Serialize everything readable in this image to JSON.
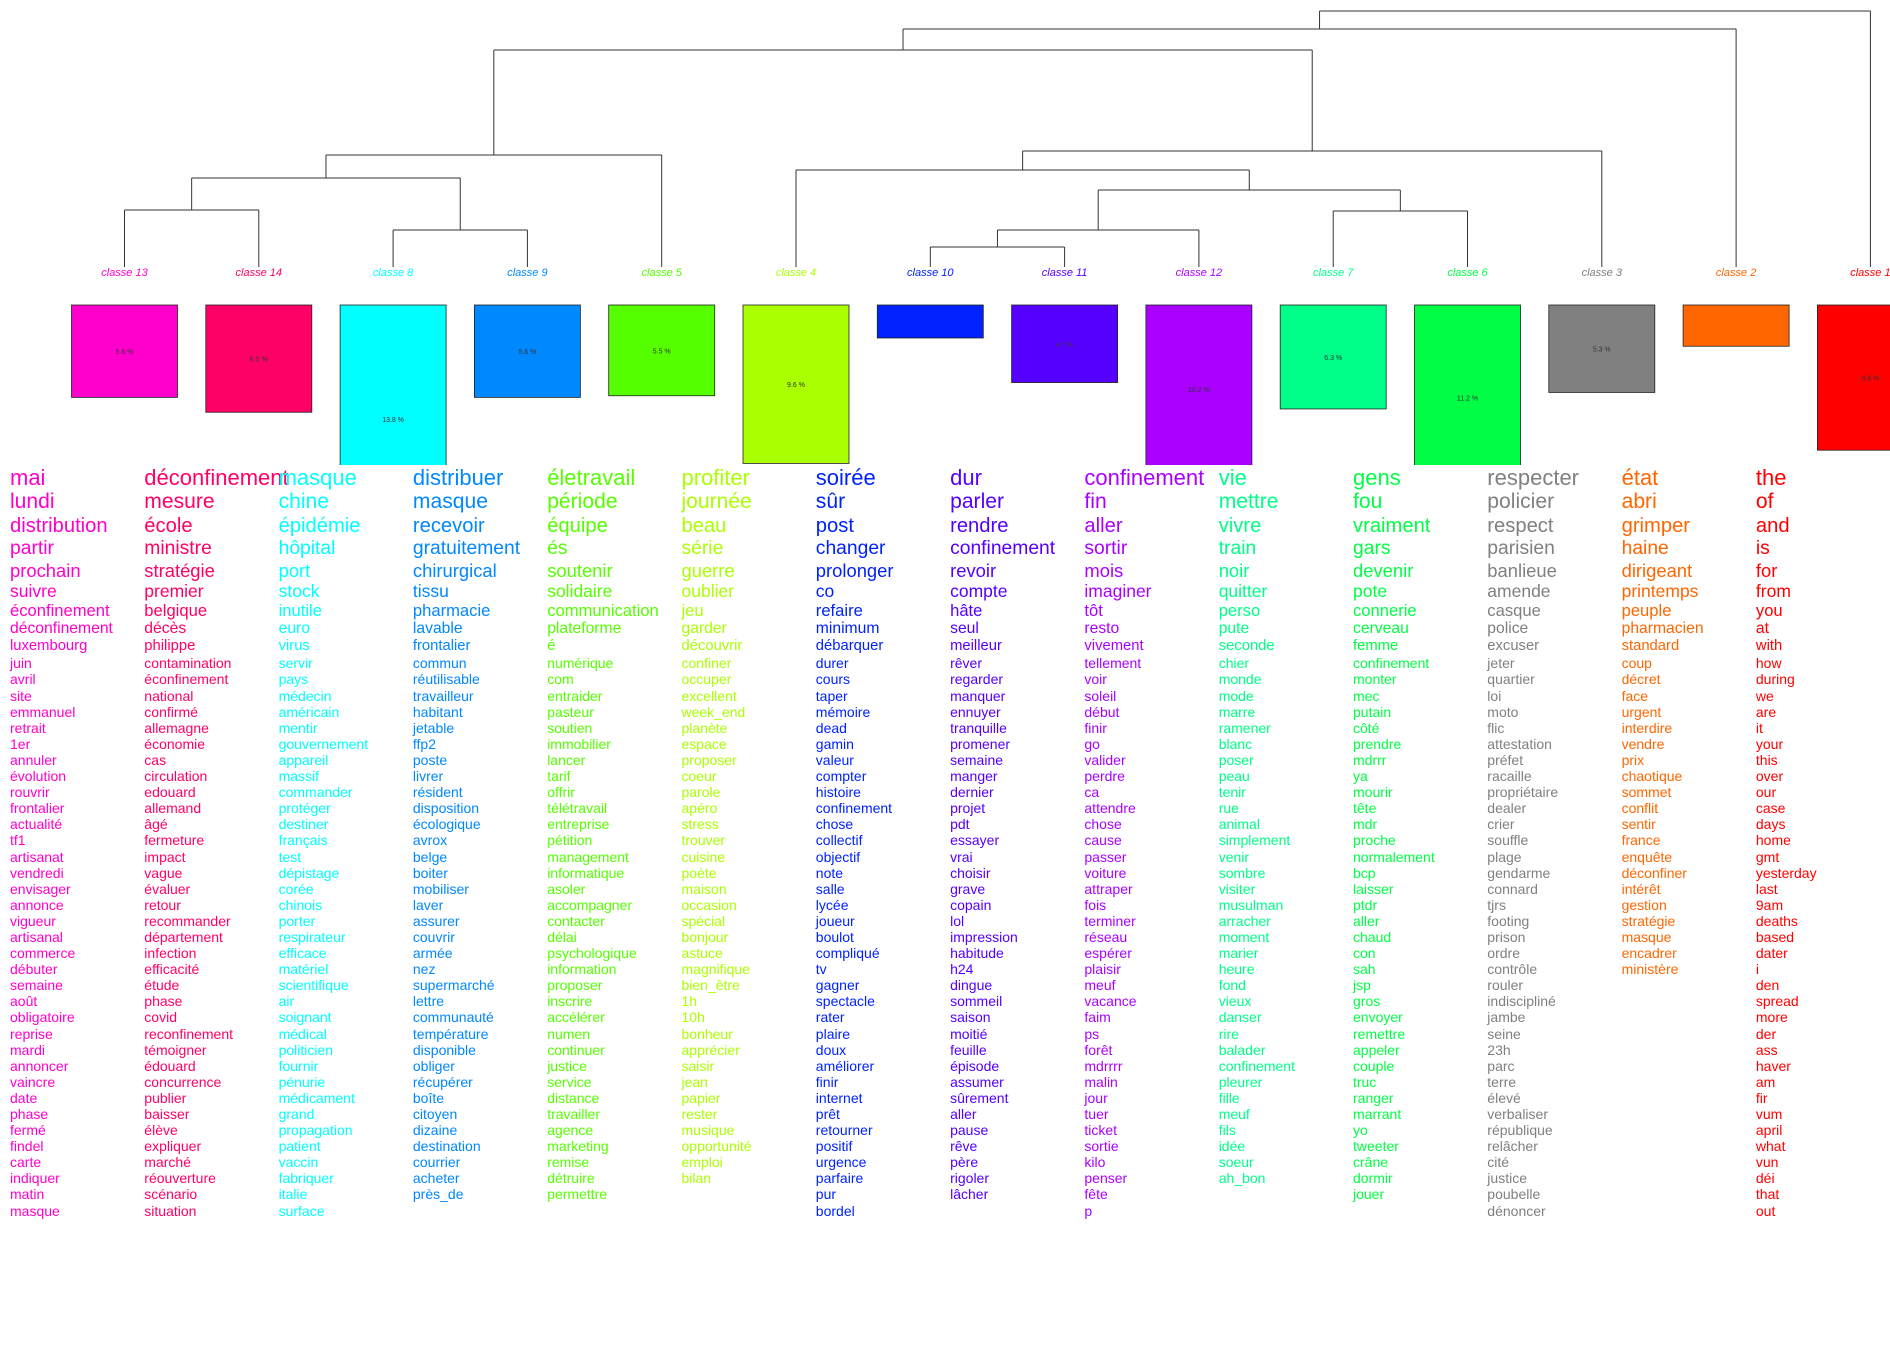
{
  "chart_data": {
    "type": "dendrogram",
    "title": "",
    "leaf_order": [
      13,
      14,
      8,
      9,
      5,
      4,
      10,
      11,
      12,
      7,
      6,
      3,
      2,
      1
    ],
    "classes": [
      {
        "id": 13,
        "label": "classe 13",
        "color": "#ff00cc",
        "percent": 5.6,
        "pct_label": "5.6 %",
        "words": [
          "mai",
          "lundi",
          "distribution",
          "partir",
          "prochain",
          "suivre",
          "éconfinement",
          "déconfinement",
          "luxembourg",
          "juin",
          "avril",
          "site",
          "emmanuel",
          "retrait",
          "1er",
          "annuler",
          "évolution",
          "rouvrir",
          "frontalier",
          "actualité",
          "tf1",
          "artisanat",
          "vendredi",
          "envisager",
          "annonce",
          "vigueur",
          "artisanal",
          "commerce",
          "débuter",
          "semaine",
          "août",
          "obligatoire",
          "reprise",
          "mardi",
          "annoncer",
          "vaincre",
          "date",
          "phase",
          "fermé",
          "findel",
          "carte",
          "indiquer",
          "matin",
          "masque"
        ]
      },
      {
        "id": 14,
        "label": "classe 14",
        "color": "#ff0066",
        "percent": 6.5,
        "pct_label": "6.5 %",
        "words": [
          "déconfinement",
          "mesure",
          "école",
          "ministre",
          "stratégie",
          "premier",
          "belgique",
          "décès",
          "philippe",
          "contamination",
          "éconfinement",
          "national",
          "confirmé",
          "allemagne",
          "économie",
          "cas",
          "circulation",
          "edouard",
          "allemand",
          "âgé",
          "fermeture",
          "impact",
          "vague",
          "évaluer",
          "retour",
          "recommander",
          "département",
          "infection",
          "efficacité",
          "étude",
          "phase",
          "covid",
          "reconfinement",
          "témoigner",
          "édouard",
          "concurrence",
          "publier",
          "baisser",
          "élève",
          "expliquer",
          "marché",
          "réouverture",
          "scénario",
          "situation"
        ]
      },
      {
        "id": 8,
        "label": "classe 8",
        "color": "#00ffff",
        "percent": 13.8,
        "pct_label": "13.8 %",
        "words": [
          "masque",
          "chine",
          "épidémie",
          "hôpital",
          "port",
          "stock",
          "inutile",
          "euro",
          "virus",
          "servir",
          "pays",
          "médecin",
          "américain",
          "mentir",
          "gouvernement",
          "appareil",
          "massif",
          "commander",
          "protéger",
          "destiner",
          "français",
          "test",
          "dépistage",
          "corée",
          "chinois",
          "porter",
          "respirateur",
          "efficace",
          "matériel",
          "scientifique",
          "air",
          "soignant",
          "médical",
          "politicien",
          "fournir",
          "pénurie",
          "médicament",
          "grand",
          "propagation",
          "patient",
          "vaccin",
          "fabriquer",
          "italie",
          "surface"
        ]
      },
      {
        "id": 9,
        "label": "classe 9",
        "color": "#0088ff",
        "percent": 5.6,
        "pct_label": "5.6 %",
        "words": [
          "distribuer",
          "masque",
          "recevoir",
          "gratuitement",
          "chirurgical",
          "tissu",
          "pharmacie",
          "lavable",
          "frontalier",
          "commun",
          "réutilisable",
          "travailleur",
          "habitant",
          "jetable",
          "ffp2",
          "poste",
          "livrer",
          "résident",
          "disposition",
          "écologique",
          "avrox",
          "belge",
          "boiter",
          "mobiliser",
          "laver",
          "assurer",
          "couvrir",
          "armée",
          "nez",
          "supermarché",
          "lettre",
          "communauté",
          "température",
          "disponible",
          "obliger",
          "récupérer",
          "boîte",
          "citoyen",
          "dizaine",
          "destination",
          "courrier",
          "acheter",
          "près_de"
        ]
      },
      {
        "id": 5,
        "label": "classe 5",
        "color": "#55ff00",
        "percent": 5.5,
        "pct_label": "5.5 %",
        "words": [
          "életravail",
          "période",
          "équipe",
          "és",
          "soutenir",
          "solidaire",
          "communication",
          "plateforme",
          "é",
          "numérique",
          "com",
          "entraider",
          "pasteur",
          "soutien",
          "immobilier",
          "lancer",
          "tarif",
          "offrir",
          "télétravail",
          "entreprise",
          "pétition",
          "management",
          "informatique",
          "asoler",
          "accompagner",
          "contacter",
          "délai",
          "psychologique",
          "information",
          "proposer",
          "inscrire",
          "accélérer",
          "numen",
          "continuer",
          "justice",
          "service",
          "distance",
          "travailler",
          "agence",
          "marketing",
          "remise",
          "détruire",
          "permettre"
        ]
      },
      {
        "id": 4,
        "label": "classe 4",
        "color": "#aaff00",
        "percent": 9.6,
        "pct_label": "9.6 %",
        "words": [
          "profiter",
          "journée",
          "beau",
          "série",
          "guerre",
          "oublier",
          "jeu",
          "garder",
          "découvrir",
          "confiner",
          "occuper",
          "excellent",
          "week_end",
          "planète",
          "espace",
          "proposer",
          "coeur",
          "parole",
          "apéro",
          "stress",
          "trouver",
          "cuisine",
          "poète",
          "maison",
          "occasion",
          "spécial",
          "bonjour",
          "astuce",
          "magnifique",
          "bien_être",
          "1h",
          "10h",
          "bonheur",
          "apprécier",
          "saisir",
          "jean",
          "papier",
          "rester",
          "musique",
          "opportunité",
          "emploi",
          "bilan"
        ]
      },
      {
        "id": 10,
        "label": "classe 10",
        "color": "#0022ff",
        "percent": 2.0,
        "pct_label": "",
        "words": [
          "soirée",
          "sûr",
          "post",
          "changer",
          "prolonger",
          "co",
          "refaire",
          "minimum",
          "débarquer",
          "durer",
          "cours",
          "taper",
          "mémoire",
          "dead",
          "gamin",
          "valeur",
          "compter",
          "histoire",
          "confinement",
          "chose",
          "collectif",
          "objectif",
          "note",
          "salle",
          "lycée",
          "joueur",
          "boulot",
          "compliqué",
          "tv",
          "gagner",
          "spectacle",
          "rater",
          "plaire",
          "doux",
          "améliorer",
          "finir",
          "internet",
          "prêt",
          "retourner",
          "positif",
          "urgence",
          "parfaire",
          "pur",
          "bordel"
        ]
      },
      {
        "id": 11,
        "label": "classe 11",
        "color": "#5500ff",
        "percent": 4.7,
        "pct_label": "4.7 %",
        "words": [
          "dur",
          "parler",
          "rendre",
          "confinement",
          "revoir",
          "compte",
          "hâte",
          "seul",
          "meilleur",
          "rêver",
          "regarder",
          "manquer",
          "ennuyer",
          "tranquille",
          "promener",
          "semaine",
          "manger",
          "dernier",
          "projet",
          "pdt",
          "essayer",
          "vrai",
          "choisir",
          "grave",
          "copain",
          "lol",
          "impression",
          "habitude",
          "h24",
          "dingue",
          "sommeil",
          "saison",
          "moitié",
          "feuille",
          "épisode",
          "assumer",
          "sûrement",
          "aller",
          "pause",
          "rêve",
          "père",
          "rigoler",
          "lâcher"
        ]
      },
      {
        "id": 12,
        "label": "classe 12",
        "color": "#aa00ff",
        "percent": 10.2,
        "pct_label": "10.2 %",
        "words": [
          "confinement",
          "fin",
          "aller",
          "sortir",
          "mois",
          "imaginer",
          "tôt",
          "resto",
          "vivement",
          "tellement",
          "voir",
          "soleil",
          "début",
          "finir",
          "go",
          "valider",
          "perdre",
          "ca",
          "attendre",
          "chose",
          "cause",
          "passer",
          "voiture",
          "attraper",
          "fois",
          "terminer",
          "réseau",
          "espérer",
          "plaisir",
          "meuf",
          "vacance",
          "faim",
          "ps",
          "forêt",
          "mdrrrr",
          "malin",
          "jour",
          "tuer",
          "ticket",
          "sortie",
          "kilo",
          "penser",
          "fête",
          "p"
        ]
      },
      {
        "id": 7,
        "label": "classe 7",
        "color": "#00ff88",
        "percent": 6.3,
        "pct_label": "6.3 %",
        "words": [
          "vie",
          "mettre",
          "vivre",
          "train",
          "noir",
          "quitter",
          "perso",
          "pute",
          "seconde",
          "chier",
          "monde",
          "mode",
          "marre",
          "ramener",
          "blanc",
          "poser",
          "peau",
          "tenir",
          "rue",
          "animal",
          "simplement",
          "venir",
          "sombre",
          "visiter",
          "musulman",
          "arracher",
          "moment",
          "marier",
          "heure",
          "fond",
          "vieux",
          "danser",
          "rire",
          "balader",
          "confinement",
          "pleurer",
          "fille",
          "meuf",
          "fils",
          "idée",
          "soeur",
          "ah_bon"
        ]
      },
      {
        "id": 6,
        "label": "classe 6",
        "color": "#00ff44",
        "percent": 11.2,
        "pct_label": "11.2 %",
        "words": [
          "gens",
          "fou",
          "vraiment",
          "gars",
          "devenir",
          "pote",
          "connerie",
          "cerveau",
          "femme",
          "confinement",
          "monter",
          "mec",
          "putain",
          "côté",
          "prendre",
          "mdrrr",
          "ya",
          "mourir",
          "tête",
          "mdr",
          "proche",
          "normalement",
          "bcp",
          "laisser",
          "ptdr",
          "aller",
          "chaud",
          "con",
          "sah",
          "jsp",
          "gros",
          "envoyer",
          "remettre",
          "appeler",
          "couple",
          "truc",
          "ranger",
          "marrant",
          "yo",
          "tweeter",
          "crâne",
          "dormir",
          "jouer"
        ]
      },
      {
        "id": 3,
        "label": "classe 3",
        "color": "#808080",
        "percent": 5.3,
        "pct_label": "5.3 %",
        "words": [
          "respecter",
          "policier",
          "respect",
          "parisien",
          "banlieue",
          "amende",
          "casque",
          "police",
          "excuser",
          "jeter",
          "quartier",
          "loi",
          "moto",
          "flic",
          "attestation",
          "préfet",
          "racaille",
          "propriétaire",
          "dealer",
          "crier",
          "souffle",
          "plage",
          "gendarme",
          "connard",
          "tjrs",
          "footing",
          "prison",
          "ordre",
          "contrôle",
          "rouler",
          "indiscipliné",
          "jambe",
          "seine",
          "23h",
          "parc",
          "terre",
          "élevé",
          "verbaliser",
          "république",
          "relâcher",
          "cité",
          "justice",
          "poubelle",
          "dénoncer"
        ]
      },
      {
        "id": 2,
        "label": "classe 2",
        "color": "#ff6600",
        "percent": 2.5,
        "pct_label": "",
        "words": [
          "état",
          "abri",
          "grimper",
          "haine",
          "dirigeant",
          "printemps",
          "peuple",
          "pharmacien",
          "standard",
          "coup",
          "décret",
          "face",
          "urgent",
          "interdire",
          "vendre",
          "prix",
          "chaotique",
          "sommet",
          "conflit",
          "sentir",
          "france",
          "enquête",
          "déconfiner",
          "intérêt",
          "gestion",
          "stratégie",
          "masque",
          "encadrer",
          "ministère"
        ]
      },
      {
        "id": 1,
        "label": "classe 1",
        "color": "#ff0000",
        "percent": 8.8,
        "pct_label": "8.8 %",
        "words": [
          "the",
          "of",
          "and",
          "is",
          "for",
          "from",
          "you",
          "at",
          "with",
          "how",
          "during",
          "we",
          "are",
          "it",
          "your",
          "this",
          "over",
          "our",
          "case",
          "days",
          "home",
          "gmt",
          "yesterday",
          "last",
          "9am",
          "deaths",
          "based",
          "dater",
          "i",
          "den",
          "spread",
          "more",
          "der",
          "ass",
          "haver",
          "am",
          "fir",
          "vum",
          "april",
          "what",
          "vun",
          "déi",
          "that",
          "out"
        ]
      }
    ]
  }
}
